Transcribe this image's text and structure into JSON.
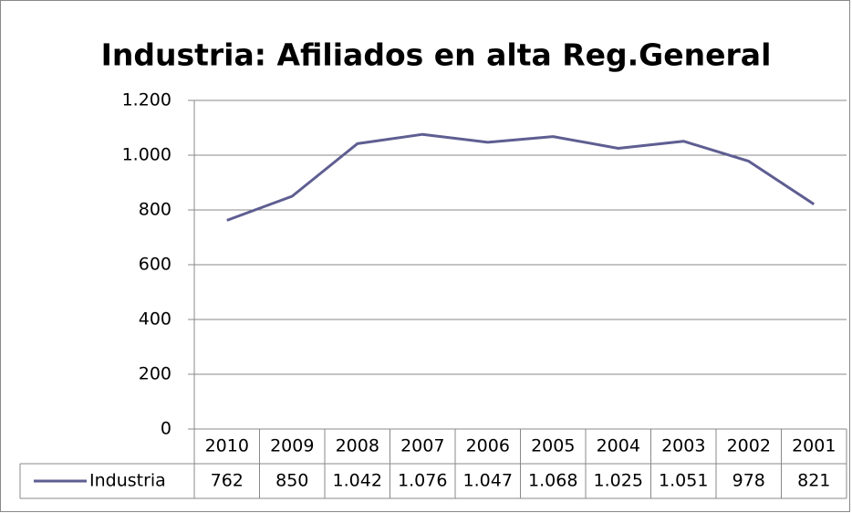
{
  "chart_data": {
    "type": "line",
    "title": "Industria: Afiliados en alta Reg.General",
    "categories": [
      "2010",
      "2009",
      "2008",
      "2007",
      "2006",
      "2005",
      "2004",
      "2003",
      "2002",
      "2001"
    ],
    "series": [
      {
        "name": "Industria",
        "color": "#5e5e92",
        "values": [
          762,
          850,
          1042,
          1076,
          1047,
          1068,
          1025,
          1051,
          978,
          821
        ],
        "value_labels": [
          "762",
          "850",
          "1.042",
          "1.076",
          "1.047",
          "1.068",
          "1.025",
          "1.051",
          "978",
          "821"
        ]
      }
    ],
    "ylim": [
      0,
      1200
    ],
    "yticks": [
      0,
      200,
      400,
      600,
      800,
      {
        "value": 1000,
        "label": "1.000"
      },
      {
        "value": 1200,
        "label": "1.200"
      }
    ],
    "grid": true
  }
}
